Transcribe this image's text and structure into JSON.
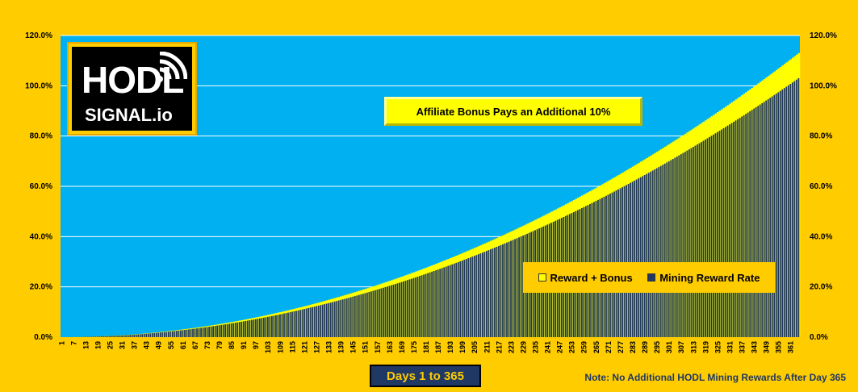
{
  "chart_data": {
    "type": "bar",
    "bar_stacking": "overlay",
    "x_start": 1,
    "x_end": 365,
    "x_tick_start": 1,
    "x_tick_step": 6,
    "ylim": [
      0,
      1.2
    ],
    "y_ticks": [
      "0.0%",
      "20.0%",
      "40.0%",
      "60.0%",
      "80.0%",
      "100.0%",
      "120.0%"
    ],
    "y_tick_values": [
      0,
      0.2,
      0.4,
      0.6,
      0.8,
      1.0,
      1.2
    ],
    "secondary_y_axis": true,
    "gridlines": true,
    "grid_color": "#FFFFFF",
    "plot_background": "#00B0F0",
    "page_background": "#FFCC00",
    "series": [
      {
        "name": "Reward + Bonus",
        "color": "#FFFF00",
        "value_day_1": 0.0,
        "value_day_365": 1.13,
        "growth": "quadratic"
      },
      {
        "name": "Mining Reward Rate",
        "color": "#1F3864",
        "value_day_1": 0.0,
        "value_day_365": 1.03,
        "growth": "quadratic"
      }
    ],
    "legend_position": "bottom-right",
    "annotations": [
      "Affiliate Bonus Pays an Additional  10%"
    ],
    "xlabel": "Days 1 to 365",
    "note": "Note:  No Additional HODL  Mining Rewards After Day  365"
  },
  "logo": {
    "main_text": "HODL",
    "sub_text": "SIGNAL.io",
    "icon": "signal-waves-icon"
  }
}
